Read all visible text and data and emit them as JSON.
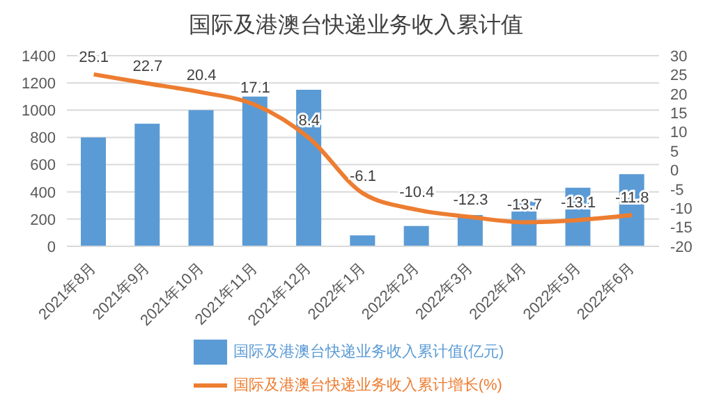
{
  "chart_data": {
    "type": "bar",
    "title": "国际及港澳台快递业务收入累计值",
    "categories": [
      "2021年8月",
      "2021年9月",
      "2021年10月",
      "2021年11月",
      "2021年12月",
      "2022年1月",
      "2022年2月",
      "2022年3月",
      "2022年4月",
      "2022年5月",
      "2022年6月"
    ],
    "series": [
      {
        "name": "国际及港澳台快递业务收入累计值(亿元)",
        "color": "#5b9bd5",
        "values": [
          800,
          900,
          1000,
          1100,
          1150,
          80,
          150,
          230,
          330,
          430,
          530
        ]
      },
      {
        "name": "国际及港澳台快递业务收入累计增长(%)",
        "type": "line",
        "axis": "y2",
        "color": "#ed7d31",
        "values": [
          25.1,
          22.7,
          20.4,
          17.1,
          8.4,
          -6.1,
          -10.4,
          -12.3,
          -13.7,
          -13.1,
          -11.8
        ],
        "value_labels": [
          "25.1",
          "22.7",
          "20.4",
          "17.1",
          "8.4",
          "-6.1",
          "-10.4",
          "-12.3",
          "-13.7",
          "-13.1",
          "-11.8"
        ]
      }
    ],
    "ylim": [
      0,
      1400
    ],
    "yticks": [
      0,
      200,
      400,
      600,
      800,
      1000,
      1200,
      1400
    ],
    "y2lim": [
      -20,
      30
    ],
    "y2ticks": [
      -20,
      -15,
      -10,
      -5,
      0,
      5,
      10,
      15,
      20,
      25,
      30
    ],
    "grid": "y",
    "legend": "bottom",
    "marker": "none",
    "line_style": "solid"
  }
}
